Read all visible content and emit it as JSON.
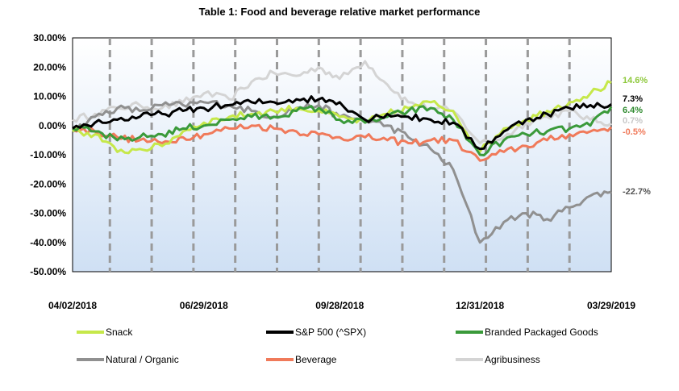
{
  "chart_data": {
    "type": "line",
    "title": "Table 1: Food and beverage relative market performance",
    "xlabel": "",
    "ylabel": "",
    "x_tick_labels": [
      "04/02/2018",
      "06/29/2018",
      "09/28/2018",
      "12/31/2018",
      "03/29/2019"
    ],
    "y_ticks": [
      30,
      20,
      10,
      0,
      -10,
      -20,
      -30,
      -40,
      -50
    ],
    "y_tick_labels": [
      "30.00%",
      "20.00%",
      "10.00%",
      "0.00%",
      "-10.00%",
      "-20.00%",
      "-30.00%",
      "-40.00%",
      "-50.00%"
    ],
    "ylim": [
      -50,
      30
    ],
    "x_range": [
      "04/02/2018",
      "03/29/2019"
    ],
    "grid": "vertical dashed lines",
    "legend_position": "bottom",
    "x": [
      "04/02/2018",
      "04/17/2018",
      "05/02/2018",
      "05/17/2018",
      "06/01/2018",
      "06/15/2018",
      "06/29/2018",
      "07/16/2018",
      "07/31/2018",
      "08/15/2018",
      "08/30/2018",
      "09/14/2018",
      "09/28/2018",
      "10/15/2018",
      "10/30/2018",
      "11/13/2018",
      "11/28/2018",
      "12/13/2018",
      "12/31/2018",
      "01/16/2019",
      "01/31/2019",
      "02/14/2019",
      "03/01/2019",
      "03/15/2019",
      "03/29/2019"
    ],
    "series": [
      {
        "name": "Snack",
        "color": "#c6e84a",
        "end_label": "14.6%",
        "values": [
          -2,
          -3,
          -9,
          -8,
          -7,
          -2,
          1,
          3,
          4,
          5,
          6,
          5,
          3,
          1,
          4,
          6,
          8,
          5,
          -9,
          -1,
          2,
          5,
          8,
          11,
          14.6
        ]
      },
      {
        "name": "S&P 500 (^SPX)",
        "color": "#000000",
        "end_label": "7.3%",
        "values": [
          -1,
          1,
          2,
          3,
          4,
          5,
          6,
          7,
          8,
          8,
          9,
          9,
          8,
          2,
          4,
          3,
          2,
          1,
          -8,
          -2,
          2,
          4,
          6,
          7,
          7.3
        ]
      },
      {
        "name": "Branded Packaged Goods",
        "color": "#3a9a3a",
        "end_label": "6.4%",
        "values": [
          -1,
          -2,
          -5,
          -4,
          -3,
          -1,
          0,
          2,
          3,
          3,
          5,
          6,
          2,
          1,
          3,
          5,
          6,
          2,
          -10,
          -5,
          -3,
          -2,
          -1,
          0,
          6.4
        ]
      },
      {
        "name": "Natural / Organic",
        "color": "#909090",
        "end_label": "-22.7%",
        "values": [
          -2,
          3,
          6,
          5,
          7,
          7,
          8,
          7,
          5,
          3,
          6,
          7,
          3,
          2,
          0,
          -4,
          -8,
          -15,
          -40,
          -33,
          -30,
          -32,
          -28,
          -24,
          -22.7
        ]
      },
      {
        "name": "Beverage",
        "color": "#f07a5a",
        "end_label": "-0.5%",
        "values": [
          -1,
          -2,
          -4,
          -5,
          -6,
          -4,
          -3,
          -1,
          0,
          -1,
          -2,
          -3,
          -4,
          -4,
          -5,
          -6,
          -5,
          -5,
          -12,
          -9,
          -7,
          -5,
          -3,
          -2,
          -0.5
        ]
      },
      {
        "name": "Agribusiness",
        "color": "#d4d4d4",
        "end_label": "0.7%",
        "values": [
          2,
          4,
          6,
          7,
          6,
          8,
          11,
          9,
          15,
          18,
          17,
          20,
          16,
          22,
          14,
          8,
          6,
          5,
          -6,
          -4,
          1,
          3,
          5,
          2,
          0.7
        ]
      }
    ]
  }
}
